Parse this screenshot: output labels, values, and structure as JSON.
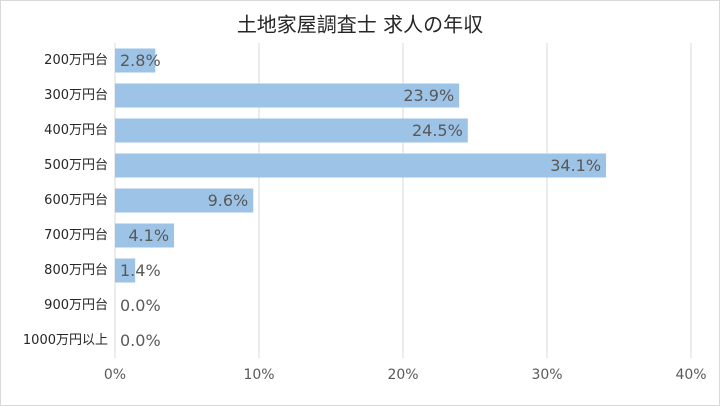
{
  "chart_data": {
    "type": "hbar",
    "title": "土地家屋調査士 求人の年収",
    "categories": [
      "200万円台",
      "300万円台",
      "400万円台",
      "500万円台",
      "600万円台",
      "700万円台",
      "800万円台",
      "900万円台",
      "1000万円以上"
    ],
    "values": [
      2.8,
      23.9,
      24.5,
      34.1,
      9.6,
      4.1,
      1.4,
      0.0,
      0.0
    ],
    "value_labels": [
      "2.8%",
      "23.9%",
      "24.5%",
      "34.1%",
      "9.6%",
      "4.1%",
      "1.4%",
      "0.0%",
      "0.0%"
    ],
    "color": "#9dc3e6",
    "xlim": [
      0,
      40
    ],
    "xticks": [
      {
        "value": 0,
        "label": "0%"
      },
      {
        "value": 10,
        "label": "10%"
      },
      {
        "value": 20,
        "label": "20%"
      },
      {
        "value": 30,
        "label": "30%"
      },
      {
        "value": 40,
        "label": "40%"
      }
    ],
    "grid": true
  }
}
